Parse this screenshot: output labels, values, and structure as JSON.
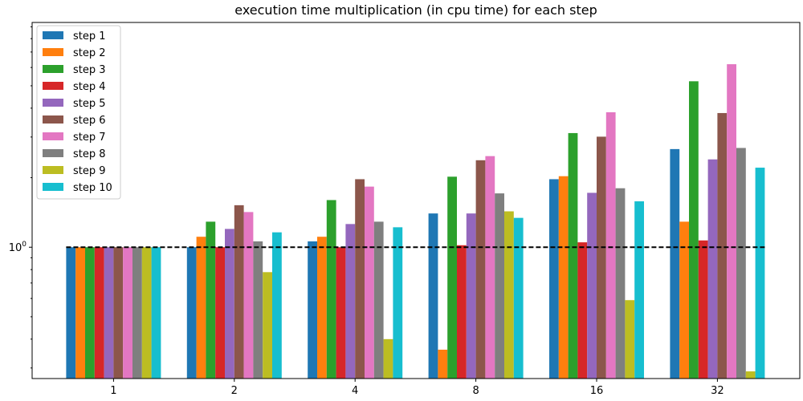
{
  "chart_data": {
    "type": "bar",
    "title": "execution time multiplication (in cpu time) for each step",
    "xlabel": "",
    "ylabel": "",
    "yscale": "log",
    "ylim": [
      0.27,
      9.4
    ],
    "y_ticks": [
      {
        "value": 1,
        "label": "10^0"
      }
    ],
    "grid": false,
    "legend_position": "top-left",
    "reference_line": {
      "value": 1,
      "style": "dashed",
      "color": "#000000"
    },
    "categories": [
      "1",
      "2",
      "4",
      "8",
      "16",
      "32"
    ],
    "series": [
      {
        "name": "step 1",
        "color": "#1f77b4",
        "values": [
          1.0,
          1.0,
          1.06,
          1.4,
          1.97,
          2.66
        ]
      },
      {
        "name": "step 2",
        "color": "#ff7f0e",
        "values": [
          1.0,
          1.11,
          1.11,
          0.36,
          2.03,
          1.29
        ]
      },
      {
        "name": "step 3",
        "color": "#2ca02c",
        "values": [
          1.0,
          1.29,
          1.6,
          2.02,
          3.12,
          5.23
        ]
      },
      {
        "name": "step 4",
        "color": "#d62728",
        "values": [
          1.0,
          1.0,
          1.0,
          1.02,
          1.05,
          1.07
        ]
      },
      {
        "name": "step 5",
        "color": "#9467bd",
        "values": [
          1.0,
          1.2,
          1.26,
          1.4,
          1.72,
          2.4
        ]
      },
      {
        "name": "step 6",
        "color": "#8c564b",
        "values": [
          1.0,
          1.52,
          1.97,
          2.38,
          3.01,
          3.81
        ]
      },
      {
        "name": "step 7",
        "color": "#e377c2",
        "values": [
          1.0,
          1.42,
          1.83,
          2.48,
          3.84,
          6.2
        ]
      },
      {
        "name": "step 8",
        "color": "#7f7f7f",
        "values": [
          1.0,
          1.06,
          1.29,
          1.71,
          1.8,
          2.69
        ]
      },
      {
        "name": "step 9",
        "color": "#bcbd22",
        "values": [
          1.0,
          0.78,
          0.4,
          1.43,
          0.59,
          0.29
        ]
      },
      {
        "name": "step 10",
        "color": "#17becf",
        "values": [
          1.0,
          1.16,
          1.22,
          1.34,
          1.58,
          2.21
        ]
      }
    ]
  }
}
